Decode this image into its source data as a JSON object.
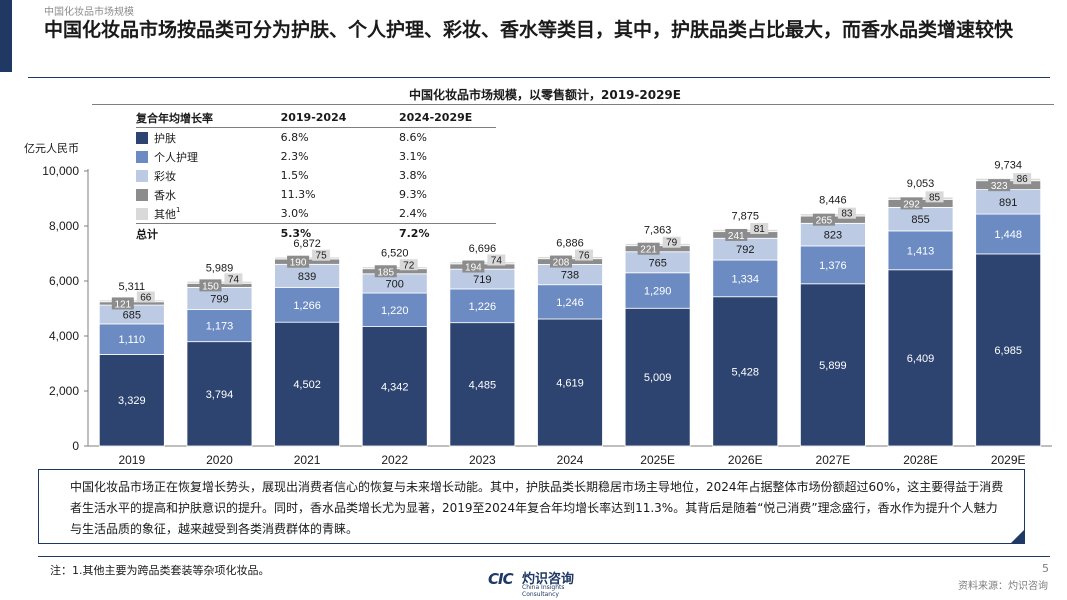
{
  "header": {
    "section_title": "中国化妆品市场规模",
    "headline": "中国化妆品市场按品类可分为护肤、个人护理、彩妆、香水等类目，其中，护肤品类占比最大，而香水品类增速较快"
  },
  "colors": {
    "skincare": "#2e4470",
    "personal_care": "#6b8bc2",
    "makeup": "#bccbe3",
    "fragrance": "#8c8c8c",
    "other": "#d9d9d9",
    "brand": "#1f3864"
  },
  "cagr_table": {
    "header": [
      "复合年均增长率",
      "2019-2024",
      "2024-2029E"
    ],
    "rows": [
      {
        "label": "护肤",
        "c1": "6.8%",
        "c2": "8.6%"
      },
      {
        "label": "个人护理",
        "c1": "2.3%",
        "c2": "3.1%"
      },
      {
        "label": "彩妆",
        "c1": "1.5%",
        "c2": "3.8%"
      },
      {
        "label": "香水",
        "c1": "11.3%",
        "c2": "9.3%"
      },
      {
        "label": "其他",
        "sup": "1",
        "c1": "3.0%",
        "c2": "2.4%"
      }
    ],
    "total": {
      "label": "总计",
      "c1": "5.3%",
      "c2": "7.2%"
    }
  },
  "chart_data": {
    "type": "bar",
    "stacked": true,
    "title": "中国化妆品市场规模，以零售额计，2019-2029E",
    "ylabel": "亿元人民币",
    "ylim": [
      0,
      10000
    ],
    "yticks": [
      "0",
      "2,000",
      "4,000",
      "6,000",
      "8,000",
      "10,000"
    ],
    "categories": [
      "2019",
      "2020",
      "2021",
      "2022",
      "2023",
      "2024",
      "2025E",
      "2026E",
      "2027E",
      "2028E",
      "2029E"
    ],
    "series": [
      {
        "name": "护肤",
        "values": [
          3329,
          3794,
          4502,
          4342,
          4485,
          4619,
          5009,
          5428,
          5899,
          6409,
          6985
        ],
        "labels": [
          "3,329",
          "3,794",
          "4,502",
          "4,342",
          "4,485",
          "4,619",
          "5,009",
          "5,428",
          "5,899",
          "6,409",
          "6,985"
        ]
      },
      {
        "name": "个人护理",
        "values": [
          1110,
          1173,
          1266,
          1220,
          1226,
          1246,
          1290,
          1334,
          1376,
          1413,
          1448
        ],
        "labels": [
          "1,110",
          "1,173",
          "1,266",
          "1,220",
          "1,226",
          "1,246",
          "1,290",
          "1,334",
          "1,376",
          "1,413",
          "1,448"
        ]
      },
      {
        "name": "彩妆",
        "values": [
          685,
          799,
          839,
          700,
          719,
          738,
          765,
          792,
          823,
          855,
          891
        ],
        "labels": [
          "685",
          "799",
          "839",
          "700",
          "719",
          "738",
          "765",
          "792",
          "823",
          "855",
          "891"
        ]
      },
      {
        "name": "香水",
        "values": [
          121,
          150,
          190,
          185,
          194,
          208,
          221,
          241,
          265,
          292,
          323
        ],
        "labels": [
          "121",
          "150",
          "190",
          "185",
          "194",
          "208",
          "221",
          "241",
          "265",
          "292",
          "323"
        ]
      },
      {
        "name": "其他",
        "values": [
          66,
          74,
          75,
          72,
          74,
          76,
          79,
          81,
          83,
          85,
          86
        ],
        "labels": [
          "66",
          "74",
          "75",
          "72",
          "74",
          "76",
          "79",
          "81",
          "83",
          "85",
          "86"
        ]
      }
    ],
    "totals": [
      "5,311",
      "5,989",
      "6,872",
      "6,520",
      "6,696",
      "6,886",
      "7,363",
      "7,875",
      "8,446",
      "9,053",
      "9,734"
    ]
  },
  "note": {
    "text": "中国化妆品市场正在恢复增长势头，展现出消费者信心的恢复与未来增长动能。其中，护肤品类长期稳居市场主导地位，2024年占据整体市场份额超过60%，这主要得益于消费者生活水平的提高和护肤意识的提升。同时，香水品类增长尤为显著，2019至2024年复合年均增长率达到11.3%。其背后是随着“悦己消费”理念盛行，香水作为提升个人魅力与生活品质的象征，越来越受到各类消费群体的青睐。"
  },
  "footer": {
    "footnote": "注：1.其他主要为跨品类套装等杂项化妆品。",
    "logo_mark": "CIC",
    "logo_cn": "灼识咨询",
    "logo_en": "China Insights Consultancy",
    "page_number": "5",
    "source": "资料来源：灼识咨询"
  }
}
